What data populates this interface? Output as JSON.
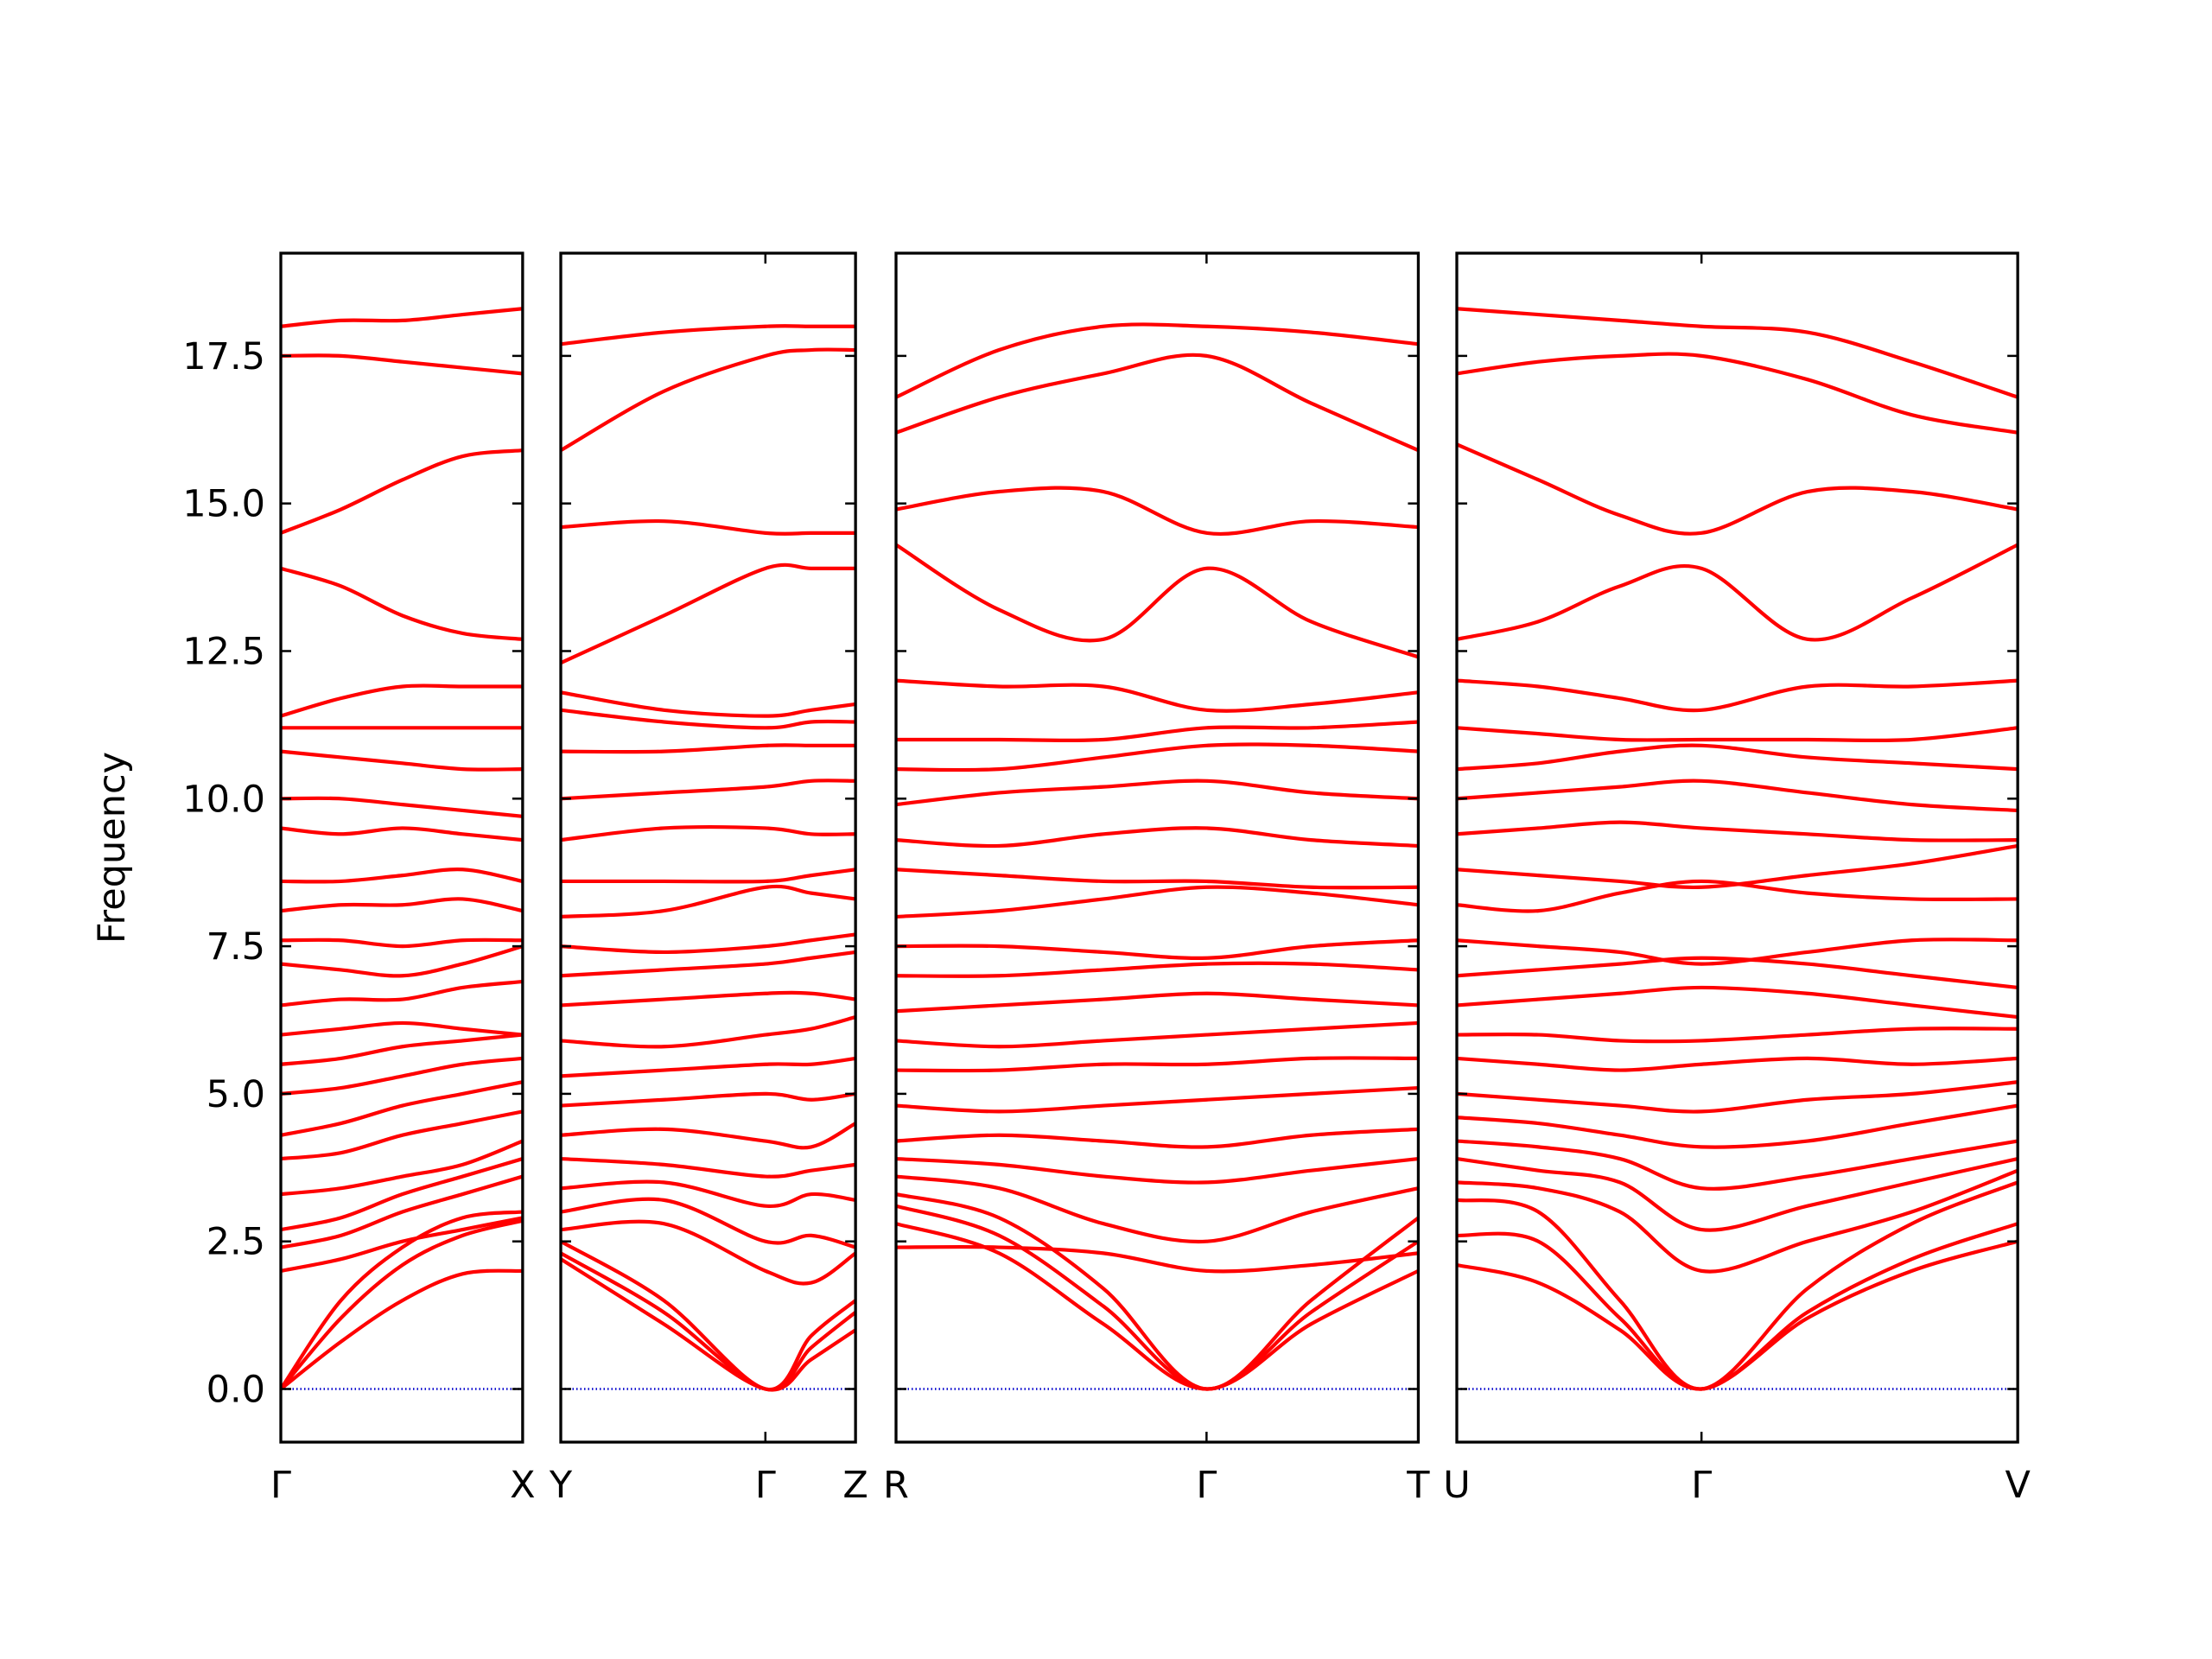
{
  "chart_data": [
    {
      "type": "line",
      "ylabel": "Frequency",
      "color": "#ff0000",
      "hline": 0,
      "hline_color": "#0000cc",
      "ylim": [
        -0.9,
        19.24
      ],
      "xlim": [
        0,
        1.69
      ],
      "yticks": [
        {
          "value": 0,
          "label": "0.0"
        },
        2.5,
        {
          "value": 5,
          "label": "5.0"
        },
        7.5,
        {
          "value": 10,
          "label": "10.0"
        },
        12.5,
        {
          "value": 15,
          "label": "15.0"
        },
        17.5
      ],
      "xticks": [
        {
          "value": 0,
          "label": "Γ"
        },
        {
          "value": 1.69,
          "label": "X"
        }
      ],
      "x": [
        0,
        0.42,
        0.85,
        1.27,
        1.69
      ],
      "bands": [
        [
          0,
          0.8,
          1.5,
          1.95,
          2.0
        ],
        [
          0,
          1.2,
          2.1,
          2.6,
          2.85
        ],
        [
          0,
          1.5,
          2.4,
          2.9,
          3.0
        ],
        [
          2.0,
          2.2,
          2.5,
          2.7,
          2.9
        ],
        [
          2.4,
          2.6,
          3.0,
          3.3,
          3.6
        ],
        [
          2.7,
          2.9,
          3.3,
          3.6,
          3.9
        ],
        [
          3.3,
          3.4,
          3.6,
          3.8,
          4.2
        ],
        [
          3.9,
          4.0,
          4.3,
          4.5,
          4.7
        ],
        [
          4.3,
          4.5,
          4.8,
          5.0,
          5.2
        ],
        [
          5.0,
          5.1,
          5.3,
          5.5,
          5.6
        ],
        [
          5.5,
          5.6,
          5.8,
          5.9,
          6.0
        ],
        [
          6.0,
          6.1,
          6.2,
          6.1,
          6.0
        ],
        [
          6.5,
          6.6,
          6.6,
          6.8,
          6.9
        ],
        [
          7.2,
          7.1,
          7.0,
          7.2,
          7.5
        ],
        [
          7.6,
          7.6,
          7.5,
          7.6,
          7.6
        ],
        [
          8.1,
          8.2,
          8.2,
          8.3,
          8.1
        ],
        [
          8.6,
          8.6,
          8.7,
          8.8,
          8.6
        ],
        [
          9.5,
          9.4,
          9.5,
          9.4,
          9.3
        ],
        [
          10.0,
          10.0,
          9.9,
          9.8,
          9.7
        ],
        [
          10.8,
          10.7,
          10.6,
          10.5,
          10.5
        ],
        [
          11.2,
          11.2,
          11.2,
          11.2,
          11.2
        ],
        [
          11.4,
          11.7,
          11.9,
          11.9,
          11.9
        ],
        [
          13.9,
          13.6,
          13.1,
          12.8,
          12.7
        ],
        [
          14.5,
          14.9,
          15.4,
          15.8,
          15.9
        ],
        [
          17.5,
          17.5,
          17.4,
          17.3,
          17.2
        ],
        [
          18.0,
          18.1,
          18.1,
          18.2,
          18.3
        ]
      ]
    },
    {
      "type": "line",
      "color": "#ff0000",
      "hline": 0,
      "hline_color": "#0000cc",
      "ylim": [
        -0.9,
        19.24
      ],
      "xlim": [
        0,
        2.06
      ],
      "xticks": [
        {
          "value": 0,
          "label": "Y"
        },
        {
          "value": 1.43,
          "label": "Γ"
        },
        {
          "value": 2.06,
          "label": "Z"
        }
      ],
      "x": [
        0,
        0.72,
        1.43,
        1.75,
        2.06
      ],
      "bands": [
        [
          2.2,
          1.1,
          0,
          0.5,
          1.0
        ],
        [
          2.3,
          1.3,
          0,
          0.7,
          1.3
        ],
        [
          2.5,
          1.5,
          0,
          0.9,
          1.5
        ],
        [
          2.7,
          2.8,
          2.0,
          1.8,
          2.3
        ],
        [
          3.0,
          3.2,
          2.5,
          2.6,
          2.4
        ],
        [
          3.4,
          3.5,
          3.1,
          3.3,
          3.2
        ],
        [
          3.9,
          3.8,
          3.6,
          3.7,
          3.8
        ],
        [
          4.3,
          4.4,
          4.2,
          4.1,
          4.5
        ],
        [
          4.8,
          4.9,
          5.0,
          4.9,
          5.0
        ],
        [
          5.3,
          5.4,
          5.5,
          5.5,
          5.6
        ],
        [
          5.9,
          5.8,
          6.0,
          6.1,
          6.3
        ],
        [
          6.5,
          6.6,
          6.7,
          6.7,
          6.6
        ],
        [
          7.0,
          7.1,
          7.2,
          7.3,
          7.4
        ],
        [
          7.5,
          7.4,
          7.5,
          7.6,
          7.7
        ],
        [
          8.0,
          8.1,
          8.5,
          8.4,
          8.3
        ],
        [
          8.6,
          8.6,
          8.6,
          8.7,
          8.8
        ],
        [
          9.3,
          9.5,
          9.5,
          9.4,
          9.4
        ],
        [
          10.0,
          10.1,
          10.2,
          10.3,
          10.3
        ],
        [
          10.8,
          10.8,
          10.9,
          10.9,
          10.9
        ],
        [
          11.5,
          11.3,
          11.2,
          11.3,
          11.3
        ],
        [
          11.8,
          11.5,
          11.4,
          11.5,
          11.6
        ],
        [
          12.3,
          13.1,
          13.9,
          13.9,
          13.9
        ],
        [
          14.6,
          14.7,
          14.5,
          14.5,
          14.5
        ],
        [
          15.9,
          16.9,
          17.5,
          17.6,
          17.6
        ],
        [
          17.7,
          17.9,
          18.0,
          18.0,
          18.0
        ]
      ]
    },
    {
      "type": "line",
      "color": "#ff0000",
      "hline": 0,
      "hline_color": "#0000cc",
      "ylim": [
        -0.9,
        19.24
      ],
      "xlim": [
        0,
        3.65
      ],
      "xticks": [
        {
          "value": 0,
          "label": "R"
        },
        {
          "value": 2.17,
          "label": "Γ"
        },
        {
          "value": 3.65,
          "label": "T"
        }
      ],
      "x": [
        0,
        0.72,
        1.45,
        2.17,
        2.9,
        3.65
      ],
      "bands": [
        [
          2.4,
          2.4,
          2.3,
          2.0,
          2.1,
          2.3
        ],
        [
          2.8,
          2.3,
          1.1,
          0,
          1.1,
          2.0
        ],
        [
          3.1,
          2.6,
          1.4,
          0,
          1.3,
          2.5
        ],
        [
          3.3,
          2.9,
          1.7,
          0,
          1.5,
          2.9
        ],
        [
          3.6,
          3.4,
          2.8,
          2.5,
          3.0,
          3.4
        ],
        [
          3.9,
          3.8,
          3.6,
          3.5,
          3.7,
          3.9
        ],
        [
          4.2,
          4.3,
          4.2,
          4.1,
          4.3,
          4.4
        ],
        [
          4.8,
          4.7,
          4.8,
          4.9,
          5.0,
          5.1
        ],
        [
          5.4,
          5.4,
          5.5,
          5.5,
          5.6,
          5.6
        ],
        [
          5.9,
          5.8,
          5.9,
          6.0,
          6.1,
          6.2
        ],
        [
          6.4,
          6.5,
          6.6,
          6.7,
          6.6,
          6.5
        ],
        [
          7.0,
          7.0,
          7.1,
          7.2,
          7.2,
          7.1
        ],
        [
          7.5,
          7.5,
          7.4,
          7.3,
          7.5,
          7.6
        ],
        [
          8.0,
          8.1,
          8.3,
          8.5,
          8.4,
          8.2
        ],
        [
          8.8,
          8.7,
          8.6,
          8.6,
          8.5,
          8.5
        ],
        [
          9.3,
          9.2,
          9.4,
          9.5,
          9.3,
          9.2
        ],
        [
          9.9,
          10.1,
          10.2,
          10.3,
          10.1,
          10.0
        ],
        [
          10.5,
          10.5,
          10.7,
          10.9,
          10.9,
          10.8
        ],
        [
          11.0,
          11.0,
          11.0,
          11.2,
          11.2,
          11.3
        ],
        [
          12.0,
          11.9,
          11.9,
          11.5,
          11.6,
          11.8
        ],
        [
          14.3,
          13.2,
          12.7,
          13.9,
          13.0,
          12.4
        ],
        [
          14.9,
          15.2,
          15.2,
          14.5,
          14.7,
          14.6
        ],
        [
          16.2,
          16.8,
          17.2,
          17.5,
          16.7,
          15.9
        ],
        [
          16.8,
          17.6,
          18.0,
          18.0,
          17.9,
          17.7
        ]
      ]
    },
    {
      "type": "line",
      "color": "#ff0000",
      "hline": 0,
      "hline_color": "#0000cc",
      "ylim": [
        -0.9,
        19.24
      ],
      "xlim": [
        0,
        3.92
      ],
      "xticks": [
        {
          "value": 0,
          "label": "U"
        },
        {
          "value": 1.71,
          "label": "Γ"
        },
        {
          "value": 3.92,
          "label": "V"
        }
      ],
      "x": [
        0,
        0.57,
        1.14,
        1.71,
        2.45,
        3.18,
        3.92
      ],
      "bands": [
        [
          2.1,
          1.8,
          1.0,
          0,
          1.2,
          2.0,
          2.5
        ],
        [
          2.6,
          2.5,
          1.2,
          0,
          1.3,
          2.2,
          2.8
        ],
        [
          3.2,
          3.0,
          1.5,
          0,
          1.7,
          2.8,
          3.5
        ],
        [
          3.5,
          3.4,
          3.0,
          2.0,
          2.5,
          3.0,
          3.7
        ],
        [
          3.9,
          3.7,
          3.5,
          2.7,
          3.1,
          3.5,
          3.9
        ],
        [
          4.2,
          4.1,
          3.9,
          3.4,
          3.6,
          3.9,
          4.2
        ],
        [
          4.6,
          4.5,
          4.3,
          4.1,
          4.2,
          4.5,
          4.8
        ],
        [
          5.0,
          4.9,
          4.8,
          4.7,
          4.9,
          5.0,
          5.2
        ],
        [
          5.6,
          5.5,
          5.4,
          5.5,
          5.6,
          5.5,
          5.6
        ],
        [
          6.0,
          6.0,
          5.9,
          5.9,
          6.0,
          6.1,
          6.1
        ],
        [
          6.5,
          6.6,
          6.7,
          6.8,
          6.7,
          6.5,
          6.3
        ],
        [
          7.0,
          7.1,
          7.2,
          7.3,
          7.2,
          7.0,
          6.8
        ],
        [
          7.6,
          7.5,
          7.4,
          7.2,
          7.4,
          7.6,
          7.6
        ],
        [
          8.2,
          8.1,
          8.4,
          8.6,
          8.4,
          8.3,
          8.3
        ],
        [
          8.8,
          8.7,
          8.6,
          8.5,
          8.7,
          8.9,
          9.2
        ],
        [
          9.4,
          9.5,
          9.6,
          9.5,
          9.4,
          9.3,
          9.3
        ],
        [
          10.0,
          10.1,
          10.2,
          10.3,
          10.1,
          9.9,
          9.8
        ],
        [
          10.5,
          10.6,
          10.8,
          10.9,
          10.7,
          10.6,
          10.5
        ],
        [
          11.2,
          11.1,
          11.0,
          11.0,
          11.0,
          11.0,
          11.2
        ],
        [
          12.0,
          11.9,
          11.7,
          11.5,
          11.9,
          11.9,
          12.0
        ],
        [
          12.7,
          13.0,
          13.6,
          13.9,
          12.7,
          13.4,
          14.3
        ],
        [
          16.0,
          15.4,
          14.8,
          14.5,
          15.2,
          15.2,
          14.9
        ],
        [
          17.2,
          17.4,
          17.5,
          17.5,
          17.1,
          16.5,
          16.2
        ],
        [
          18.3,
          18.2,
          18.1,
          18.0,
          17.9,
          17.4,
          16.8
        ]
      ]
    }
  ]
}
